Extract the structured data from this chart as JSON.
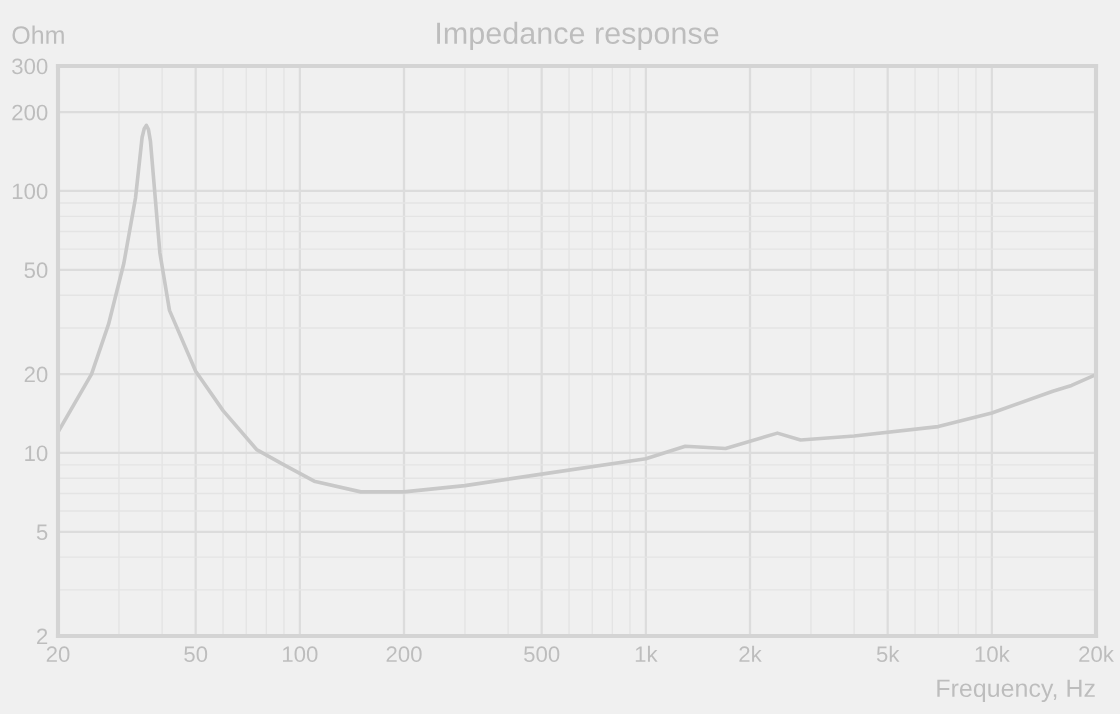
{
  "chart_data": {
    "type": "line",
    "title": "Impedance response",
    "xlabel": "Frequency, Hz",
    "ylabel": "Ohm",
    "x": [
      20,
      25,
      28,
      31,
      33.5,
      35,
      35.5,
      36,
      36.5,
      37,
      39.4,
      42,
      50,
      60,
      75,
      90,
      110,
      150,
      200,
      300,
      500,
      1000,
      1300,
      1700,
      2400,
      2800,
      4000,
      7000,
      10000,
      15000,
      17000,
      20000
    ],
    "series": [
      {
        "color": "#c8c8c8",
        "values": [
          12,
          20,
          31,
          53,
          94,
          160,
          173,
          178,
          172,
          155,
          58,
          35,
          20.5,
          14.5,
          10.3,
          9.0,
          7.8,
          7.1,
          7.1,
          7.5,
          8.3,
          9.5,
          10.6,
          10.4,
          11.9,
          11.2,
          11.6,
          12.6,
          14.2,
          17.2,
          18.1,
          19.9
        ]
      }
    ],
    "log": "xy",
    "xlim": [
      20,
      20000
    ],
    "ylim": [
      2,
      300
    ],
    "xticks": [
      20,
      50,
      100,
      200,
      500,
      {
        "value": 1000,
        "label": "1k"
      },
      {
        "value": 2000,
        "label": "2k"
      },
      {
        "value": 5000,
        "label": "5k"
      },
      {
        "value": 10000,
        "label": "10k"
      },
      {
        "value": 20000,
        "label": "20k"
      }
    ],
    "yticks": [
      2,
      5,
      10,
      20,
      50,
      100,
      200,
      300
    ],
    "grid": true,
    "legend": false,
    "marker": "none",
    "line_style": "solid"
  }
}
